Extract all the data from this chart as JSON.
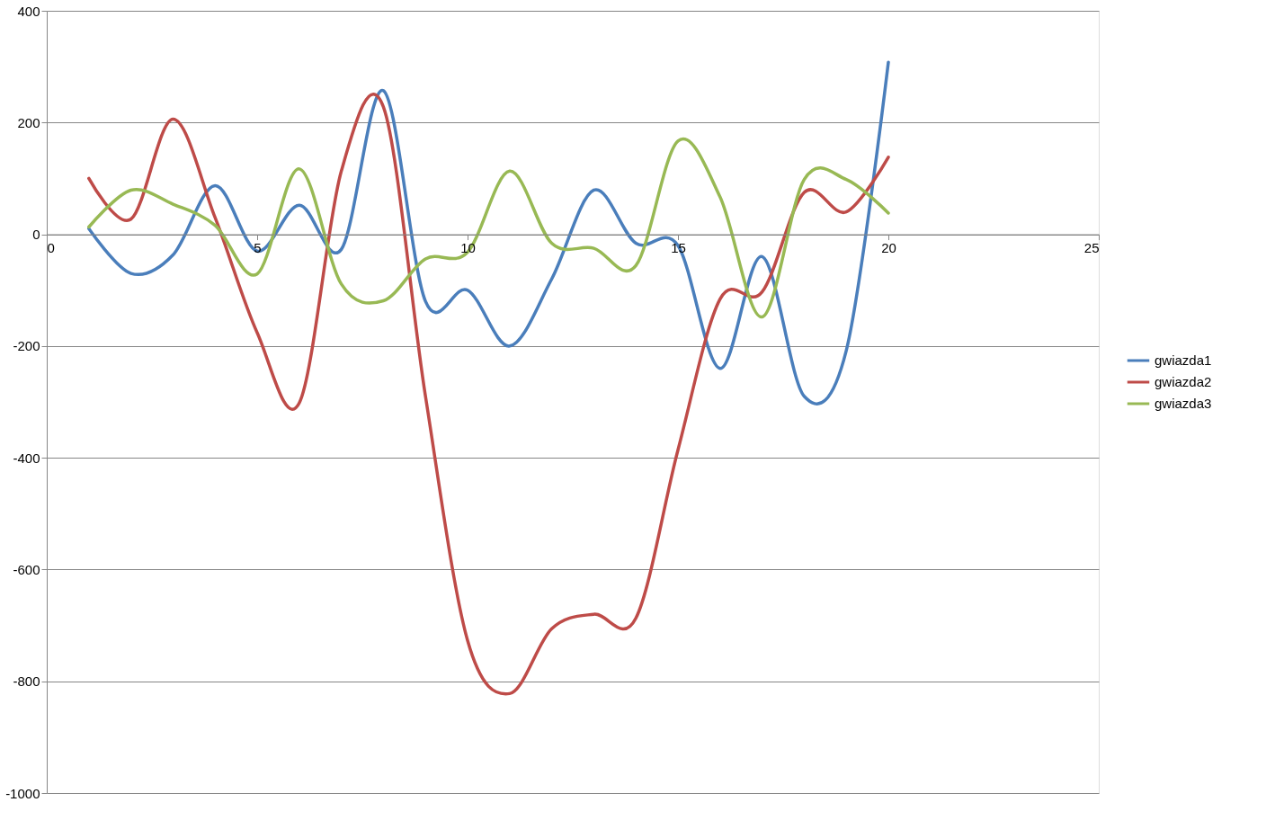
{
  "chart_data": {
    "type": "line",
    "x": [
      1,
      2,
      3,
      4,
      5,
      6,
      7,
      8,
      9,
      10,
      11,
      12,
      13,
      14,
      15,
      16,
      17,
      18,
      19,
      20
    ],
    "series": [
      {
        "name": "gwiazda1",
        "color": "#4a7ebb",
        "values": [
          10,
          -70,
          -37,
          87,
          -30,
          52,
          -27,
          257,
          -120,
          -100,
          -200,
          -80,
          79,
          -16,
          -20,
          -240,
          -40,
          -290,
          -208,
          308
        ]
      },
      {
        "name": "gwiazda2",
        "color": "#be4b48",
        "values": [
          100,
          27,
          206,
          30,
          -176,
          -302,
          113,
          228,
          -290,
          -727,
          -822,
          -706,
          -680,
          -687,
          -386,
          -116,
          -103,
          75,
          40,
          138
        ]
      },
      {
        "name": "gwiazda3",
        "color": "#98b954",
        "values": [
          13,
          79,
          54,
          16,
          -71,
          117,
          -89,
          -119,
          -44,
          -32,
          113,
          -16,
          -25,
          -56,
          167,
          67,
          -148,
          98,
          98,
          38
        ]
      }
    ],
    "xlim": [
      0,
      25
    ],
    "xticks": [
      0,
      5,
      10,
      15,
      20,
      25
    ],
    "ylim": [
      -1000,
      400
    ],
    "yticks": [
      -1000,
      -800,
      -600,
      -400,
      -200,
      0,
      200,
      400
    ],
    "grid": "y",
    "legend": "right",
    "marker": "none",
    "line_style": "solid"
  }
}
